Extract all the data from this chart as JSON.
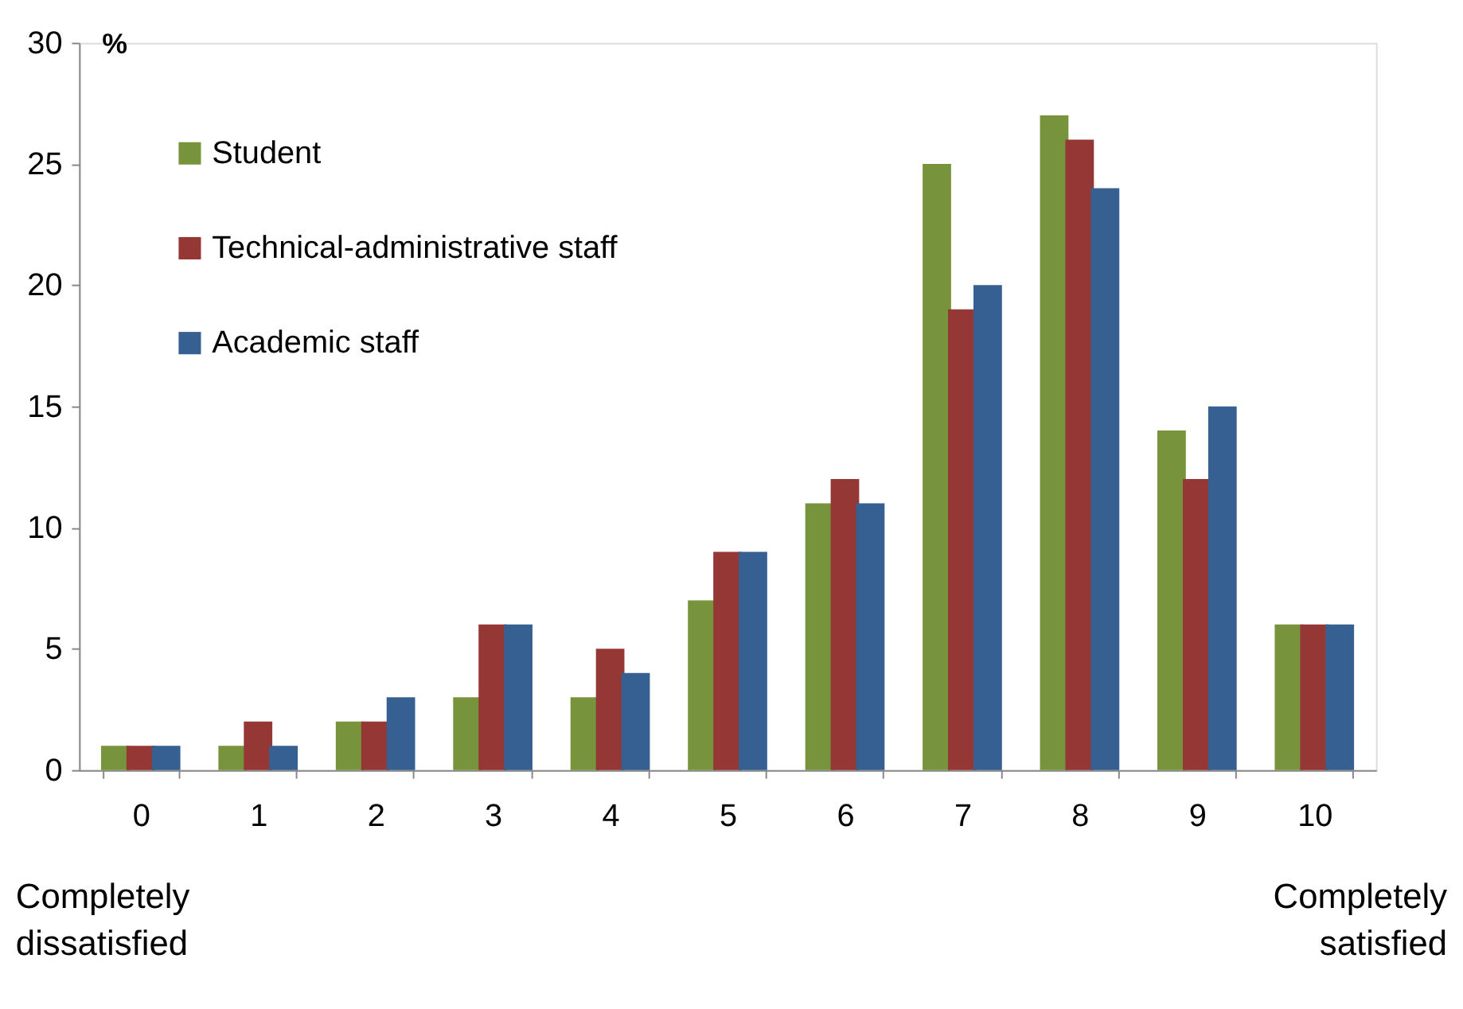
{
  "chart_data": {
    "type": "bar",
    "ylabel": "%",
    "categories": [
      "0",
      "1",
      "2",
      "3",
      "4",
      "5",
      "6",
      "7",
      "8",
      "9",
      "10"
    ],
    "series": [
      {
        "name": "Student",
        "color": "#77933c",
        "values": [
          1,
          1,
          2,
          3,
          3,
          7,
          11,
          25,
          27,
          14,
          6
        ]
      },
      {
        "name": "Technical-administrative staff",
        "color": "#953735",
        "values": [
          1,
          2,
          2,
          6,
          5,
          9,
          12,
          19,
          26,
          12,
          6
        ]
      },
      {
        "name": "Academic staff",
        "color": "#376092",
        "values": [
          1,
          1,
          3,
          6,
          4,
          9,
          11,
          20,
          24,
          15,
          6
        ]
      }
    ],
    "ylim": [
      0,
      30
    ],
    "yticks": [
      0,
      5,
      10,
      15,
      20,
      25,
      30
    ],
    "grid": false,
    "legend": "top left",
    "annotations": [
      "Completely dissatisfied",
      "Completely satisfied"
    ]
  }
}
